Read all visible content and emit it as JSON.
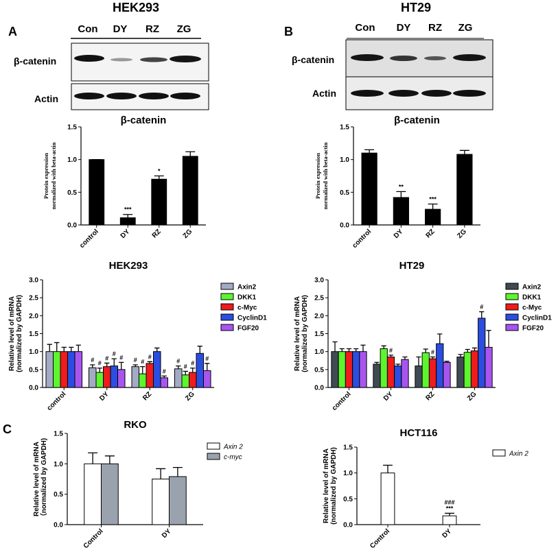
{
  "panel_labels": [
    "A",
    "B",
    "C"
  ],
  "blots": [
    {
      "cell_line": "HEK293",
      "lanes": [
        "Con",
        "DY",
        "RZ",
        "ZG"
      ],
      "rows": [
        "β-catenin",
        "Actin"
      ]
    },
    {
      "cell_line": "HT29",
      "lanes": [
        "Con",
        "DY",
        "RZ",
        "ZG"
      ],
      "rows": [
        "β-catenin",
        "Actin"
      ]
    }
  ],
  "chart_data": [
    {
      "type": "bar",
      "title": "β-catenin",
      "y_label": [
        "Protein expression",
        "normalized with beta-actin"
      ],
      "categories": [
        "control",
        "DY",
        "RZ",
        "ZG"
      ],
      "series": [
        {
          "color": "#000000",
          "values": [
            1.0,
            0.11,
            0.7,
            1.05
          ],
          "errors": [
            0,
            0.05,
            0.05,
            0.07
          ],
          "annotations": [
            null,
            "***",
            "*",
            null
          ]
        }
      ],
      "ylim": [
        0,
        1.5
      ],
      "yticks": [
        {
          "value": 0,
          "label": "0.0"
        },
        0.5,
        {
          "value": 1,
          "label": "1.0"
        },
        1.5
      ]
    },
    {
      "type": "bar",
      "title": "β-catenin",
      "y_label": [
        "Protein expression",
        "normalized with beta-actin"
      ],
      "categories": [
        "control",
        "DY",
        "RZ",
        "ZG"
      ],
      "series": [
        {
          "color": "#000000",
          "values": [
            1.1,
            0.42,
            0.24,
            1.08
          ],
          "errors": [
            0.05,
            0.09,
            0.08,
            0.06
          ],
          "annotations": [
            null,
            "**",
            "***",
            null
          ]
        }
      ],
      "ylim": [
        0,
        1.5
      ],
      "yticks": [
        {
          "value": 0,
          "label": "0.0"
        },
        0.5,
        {
          "value": 1,
          "label": "1.0"
        },
        1.5
      ]
    },
    {
      "type": "bar",
      "title": "HEK293",
      "y_label": [
        "Relative level of mRNA",
        "(normalized by GAPDH)"
      ],
      "categories": [
        "control",
        "DY",
        "RZ",
        "ZG"
      ],
      "series": [
        {
          "name": "Axin2",
          "color": "#a3abc4",
          "values": [
            1.0,
            0.55,
            0.58,
            0.52
          ],
          "errors": [
            0.2,
            0.08,
            0.05,
            0.08
          ],
          "annotations": [
            null,
            "#",
            "#",
            "#"
          ]
        },
        {
          "name": "DKK1",
          "color": "#5cf52e",
          "values": [
            1.0,
            0.42,
            0.38,
            0.35
          ],
          "errors": [
            0.25,
            0.12,
            0.2,
            0.1
          ],
          "annotations": [
            null,
            "#",
            "#",
            "#"
          ]
        },
        {
          "name": "c-Myc",
          "color": "#ee1c1c",
          "values": [
            1.0,
            0.58,
            0.67,
            0.42
          ],
          "errors": [
            0.12,
            0.1,
            0.05,
            0.12
          ],
          "annotations": [
            null,
            "#",
            "#",
            "#"
          ]
        },
        {
          "name": "CyclinD1",
          "color": "#2b4ee0",
          "values": [
            1.0,
            0.6,
            1.0,
            0.95
          ],
          "errors": [
            0.12,
            0.2,
            0.1,
            0.2
          ],
          "annotations": [
            null,
            "#",
            null,
            null
          ]
        },
        {
          "name": "FGF20",
          "color": "#a855f0",
          "values": [
            1.0,
            0.5,
            0.27,
            0.47
          ],
          "errors": [
            0.18,
            0.2,
            0.05,
            0.2
          ],
          "annotations": [
            null,
            "#",
            "#",
            "#"
          ]
        }
      ],
      "ylim": [
        0,
        3
      ],
      "yticks": [
        {
          "value": 0,
          "label": "0.0"
        },
        0.5,
        {
          "value": 1,
          "label": "1.0"
        },
        1.5,
        {
          "value": 2,
          "label": "2.0"
        },
        2.5,
        {
          "value": 3,
          "label": "3.0"
        }
      ]
    },
    {
      "type": "bar",
      "title": "HT29",
      "y_label": [
        "Relative level of mRNA",
        "(normalized by GAPDH)"
      ],
      "categories": [
        "control",
        "DY",
        "RZ",
        "ZG"
      ],
      "series": [
        {
          "name": "Axin2",
          "color": "#404a52",
          "values": [
            1.0,
            0.65,
            0.6,
            0.85
          ],
          "errors": [
            0.27,
            0.05,
            0.25,
            0.07
          ],
          "annotations": [
            null,
            null,
            null,
            null
          ]
        },
        {
          "name": "DKK1",
          "color": "#5cf52e",
          "values": [
            1.0,
            1.08,
            0.97,
            0.98
          ],
          "errors": [
            0.08,
            0.08,
            0.1,
            0.08
          ],
          "annotations": [
            null,
            null,
            null,
            null
          ]
        },
        {
          "name": "c-Myc",
          "color": "#ee1c1c",
          "values": [
            1.0,
            0.85,
            0.8,
            1.02
          ],
          "errors": [
            0.08,
            0.05,
            0.05,
            0.08
          ],
          "annotations": [
            null,
            "#",
            "#",
            null
          ]
        },
        {
          "name": "CyclinD1",
          "color": "#2b4ee0",
          "values": [
            1.0,
            0.6,
            1.22,
            1.93
          ],
          "errors": [
            0.08,
            0.05,
            0.27,
            0.18
          ],
          "annotations": [
            null,
            null,
            null,
            "#"
          ]
        },
        {
          "name": "FGF20",
          "color": "#a855f0",
          "values": [
            1.0,
            0.78,
            0.7,
            1.12
          ],
          "errors": [
            0.18,
            0.07,
            0.03,
            0.47
          ],
          "annotations": [
            null,
            null,
            null,
            null
          ]
        }
      ],
      "ylim": [
        0,
        3
      ],
      "yticks": [
        {
          "value": 0,
          "label": "0.0"
        },
        0.5,
        {
          "value": 1,
          "label": "1.0"
        },
        1.5,
        {
          "value": 2,
          "label": "2.0"
        },
        2.5,
        {
          "value": 3,
          "label": "3.0"
        }
      ]
    },
    {
      "type": "bar",
      "title": "RKO",
      "y_label": [
        "Relative level of mRNA",
        "（normalized by GAPDH)"
      ],
      "categories": [
        "Control",
        "DY"
      ],
      "series": [
        {
          "name": "Axin 2",
          "color": "#ffffff",
          "values": [
            1.0,
            0.75
          ],
          "errors": [
            0.18,
            0.17
          ],
          "annotations": [
            null,
            null
          ]
        },
        {
          "name": "c-myc",
          "color": "#9aa3ad",
          "values": [
            1.0,
            0.79
          ],
          "errors": [
            0.13,
            0.15
          ],
          "annotations": [
            null,
            null
          ]
        }
      ],
      "ylim": [
        0,
        1.5
      ],
      "yticks": [
        {
          "value": 0,
          "label": "0.0"
        },
        0.5,
        {
          "value": 1,
          "label": "1.0"
        },
        1.5
      ]
    },
    {
      "type": "bar",
      "title": "HCT116",
      "y_label": [
        "Relative level of mRNA",
        "(normalized by GAPDH)"
      ],
      "categories": [
        "Control",
        "DY"
      ],
      "series": [
        {
          "name": "Axin 2",
          "color": "#ffffff",
          "values": [
            1.0,
            0.17
          ],
          "errors": [
            0.15,
            0.05
          ],
          "annotations": [
            null,
            "***"
          ],
          "annotations_2": [
            null,
            "###"
          ]
        }
      ],
      "ylim": [
        0,
        1.5
      ],
      "yticks": [
        {
          "value": 0,
          "label": "0.0"
        },
        0.5,
        {
          "value": 1,
          "label": "1.0"
        },
        1.5
      ]
    }
  ]
}
